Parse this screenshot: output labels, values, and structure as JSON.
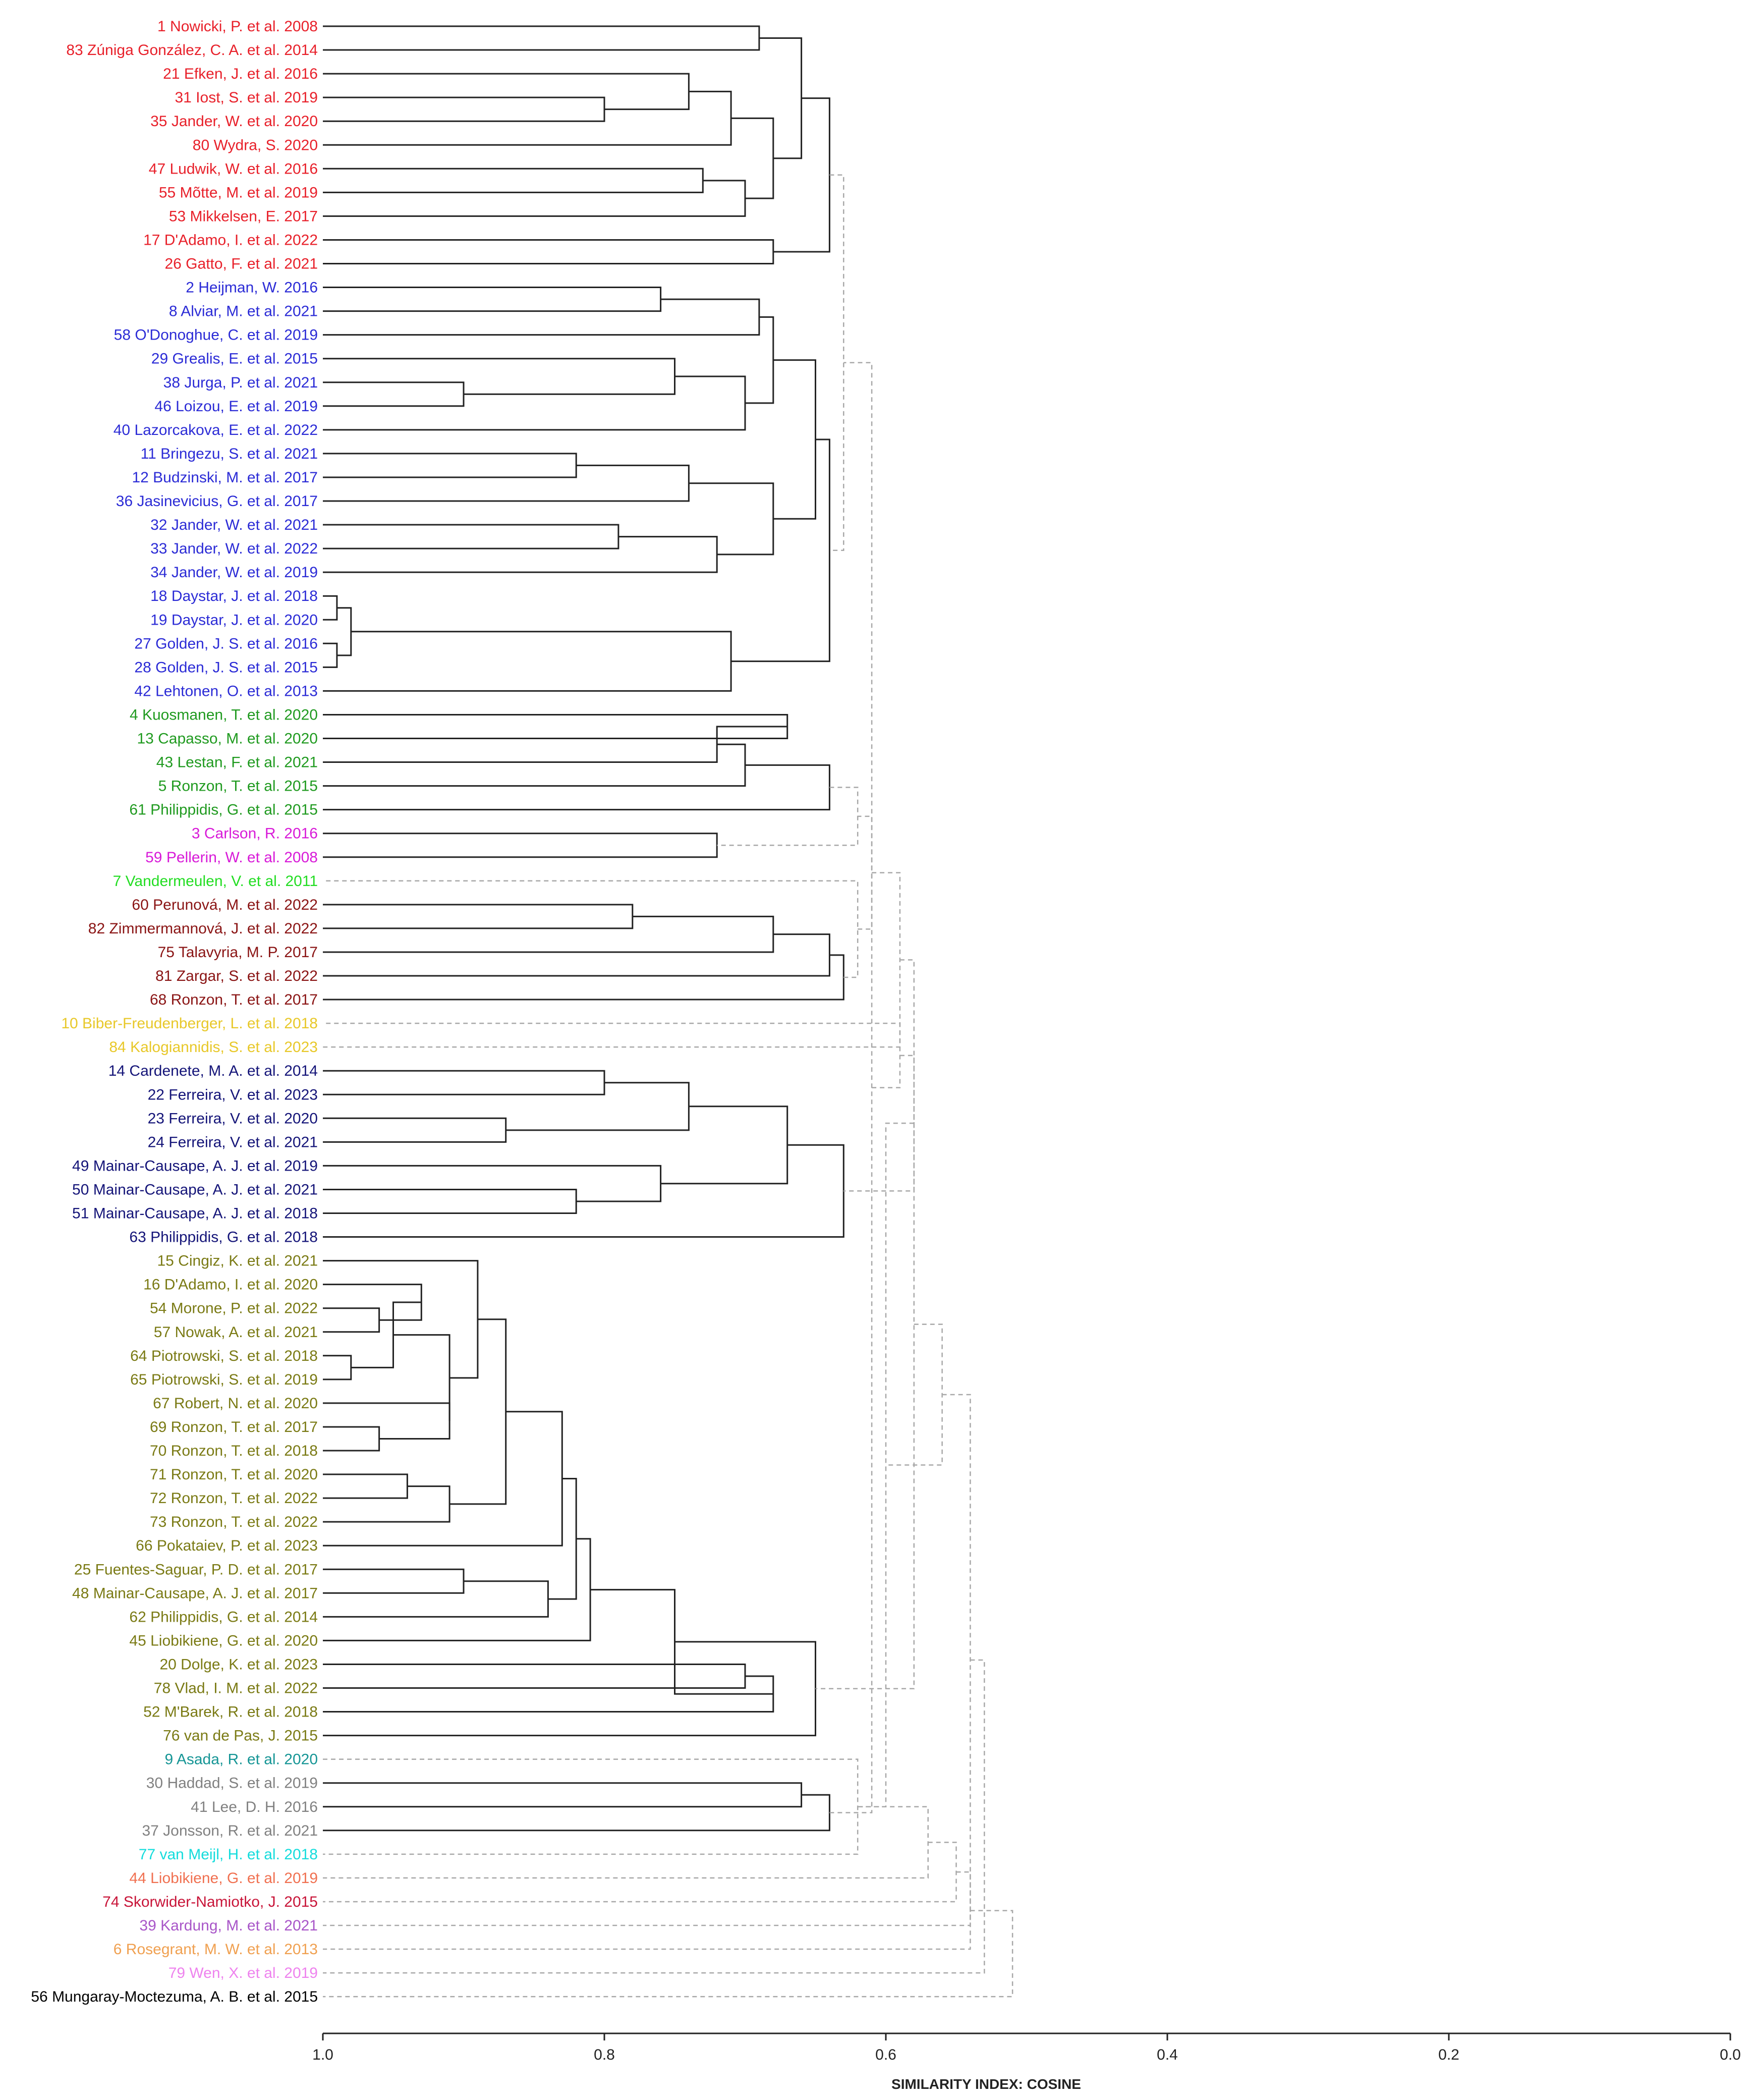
{
  "chart_data": {
    "type": "dendrogram",
    "xlabel": "SIMILARITY INDEX: COSINE",
    "x_axis": {
      "range": [
        1.0,
        0.0
      ],
      "ticks": [
        1.0,
        0.8,
        0.6,
        0.4,
        0.2,
        0.0
      ],
      "tick_labels": [
        "1.0",
        "0.8",
        "0.6",
        "0.4",
        "0.2",
        "0.0"
      ]
    },
    "colors": {
      "red": "#e8202a",
      "blue": "#2b2bd6",
      "green": "#1f9a1f",
      "magenta": "#d81ad8",
      "lime": "#22dd22",
      "maroon": "#8a1414",
      "yellow": "#e8c829",
      "navy": "#141478",
      "olive": "#7a7a14",
      "teal": "#159595",
      "gray": "#808080",
      "cyan": "#14dcdc",
      "salmon": "#f07050",
      "crimson": "#c81438",
      "purple": "#a855c8",
      "orange": "#f0a050",
      "pink": "#ee82ee",
      "black": "#000000"
    },
    "leaves": [
      {
        "id": "1",
        "name": "Nowicki, P. et al.",
        "year": "2008",
        "color": "red"
      },
      {
        "id": "83",
        "name": "Zúniga González, C. A. et al.",
        "year": "2014",
        "color": "red"
      },
      {
        "id": "21",
        "name": "Efken, J. et al.",
        "year": "2016",
        "color": "red"
      },
      {
        "id": "31",
        "name": "Iost, S. et al.",
        "year": "2019",
        "color": "red"
      },
      {
        "id": "35",
        "name": "Jander, W. et al.",
        "year": "2020",
        "color": "red"
      },
      {
        "id": "80",
        "name": "Wydra, S.",
        "year": "2020",
        "color": "red"
      },
      {
        "id": "47",
        "name": "Ludwik, W. et al.",
        "year": "2016",
        "color": "red"
      },
      {
        "id": "55",
        "name": "Mõtte, M. et al.",
        "year": "2019",
        "color": "red"
      },
      {
        "id": "53",
        "name": "Mikkelsen, E.",
        "year": "2017",
        "color": "red"
      },
      {
        "id": "17",
        "name": "D'Adamo, I. et al.",
        "year": "2022",
        "color": "red"
      },
      {
        "id": "26",
        "name": "Gatto, F. et al.",
        "year": "2021",
        "color": "red"
      },
      {
        "id": "2",
        "name": "Heijman, W.",
        "year": "2016",
        "color": "blue"
      },
      {
        "id": "8",
        "name": "Alviar, M. et al.",
        "year": "2021",
        "color": "blue"
      },
      {
        "id": "58",
        "name": "O'Donoghue, C. et al.",
        "year": "2019",
        "color": "blue"
      },
      {
        "id": "29",
        "name": "Grealis, E. et al.",
        "year": "2015",
        "color": "blue"
      },
      {
        "id": "38",
        "name": "Jurga, P. et al.",
        "year": "2021",
        "color": "blue"
      },
      {
        "id": "46",
        "name": "Loizou, E. et al.",
        "year": "2019",
        "color": "blue"
      },
      {
        "id": "40",
        "name": "Lazorcakova, E. et al.",
        "year": "2022",
        "color": "blue"
      },
      {
        "id": "11",
        "name": "Bringezu, S. et al.",
        "year": "2021",
        "color": "blue"
      },
      {
        "id": "12",
        "name": "Budzinski, M. et al.",
        "year": "2017",
        "color": "blue"
      },
      {
        "id": "36",
        "name": "Jasinevicius, G. et al.",
        "year": "2017",
        "color": "blue"
      },
      {
        "id": "32",
        "name": "Jander, W. et al.",
        "year": "2021",
        "color": "blue"
      },
      {
        "id": "33",
        "name": "Jander, W. et al.",
        "year": "2022",
        "color": "blue"
      },
      {
        "id": "34",
        "name": "Jander, W. et al.",
        "year": "2019",
        "color": "blue"
      },
      {
        "id": "18",
        "name": "Daystar, J. et al.",
        "year": "2018",
        "color": "blue"
      },
      {
        "id": "19",
        "name": "Daystar, J. et al.",
        "year": "2020",
        "color": "blue"
      },
      {
        "id": "27",
        "name": "Golden, J. S. et al.",
        "year": "2016",
        "color": "blue"
      },
      {
        "id": "28",
        "name": "Golden, J. S. et al.",
        "year": "2015",
        "color": "blue"
      },
      {
        "id": "42",
        "name": "Lehtonen, O. et al.",
        "year": "2013",
        "color": "blue"
      },
      {
        "id": "4",
        "name": "Kuosmanen, T. et al.",
        "year": "2020",
        "color": "green"
      },
      {
        "id": "13",
        "name": "Capasso, M. et al.",
        "year": "2020",
        "color": "green"
      },
      {
        "id": "43",
        "name": "Lestan, F. et al.",
        "year": "2021",
        "color": "green"
      },
      {
        "id": "5",
        "name": "Ronzon, T. et al.",
        "year": "2015",
        "color": "green"
      },
      {
        "id": "61",
        "name": "Philippidis, G. et al.",
        "year": "2015",
        "color": "green"
      },
      {
        "id": "3",
        "name": "Carlson, R.",
        "year": "2016",
        "color": "magenta"
      },
      {
        "id": "59",
        "name": "Pellerin, W. et al.",
        "year": "2008",
        "color": "magenta"
      },
      {
        "id": "7",
        "name": "Vandermeulen, V. et al.",
        "year": "2011",
        "color": "lime"
      },
      {
        "id": "60",
        "name": "Perunová, M. et al.",
        "year": "2022",
        "color": "maroon"
      },
      {
        "id": "82",
        "name": "Zimmermannová, J. et al.",
        "year": "2022",
        "color": "maroon"
      },
      {
        "id": "75",
        "name": "Talavyria, M. P.",
        "year": "2017",
        "color": "maroon"
      },
      {
        "id": "81",
        "name": "Zargar, S. et al.",
        "year": "2022",
        "color": "maroon"
      },
      {
        "id": "68",
        "name": "Ronzon, T. et al.",
        "year": "2017",
        "color": "maroon"
      },
      {
        "id": "10",
        "name": "Biber-Freudenberger, L. et al.",
        "year": "2018",
        "color": "yellow"
      },
      {
        "id": "84",
        "name": "Kalogiannidis, S. et al.",
        "year": "2023",
        "color": "yellow"
      },
      {
        "id": "14",
        "name": "Cardenete, M. A. et al.",
        "year": "2014",
        "color": "navy"
      },
      {
        "id": "22",
        "name": "Ferreira, V. et al.",
        "year": "2023",
        "color": "navy"
      },
      {
        "id": "23",
        "name": "Ferreira, V. et al.",
        "year": "2020",
        "color": "navy"
      },
      {
        "id": "24",
        "name": "Ferreira, V. et al.",
        "year": "2021",
        "color": "navy"
      },
      {
        "id": "49",
        "name": "Mainar-Causape, A. J. et al.",
        "year": "2019",
        "color": "navy"
      },
      {
        "id": "50",
        "name": "Mainar-Causape, A. J. et al.",
        "year": "2021",
        "color": "navy"
      },
      {
        "id": "51",
        "name": "Mainar-Causape, A. J. et al.",
        "year": "2018",
        "color": "navy"
      },
      {
        "id": "63",
        "name": "Philippidis, G. et al.",
        "year": "2018",
        "color": "navy"
      },
      {
        "id": "15",
        "name": "Cingiz, K. et al.",
        "year": "2021",
        "color": "olive"
      },
      {
        "id": "16",
        "name": "D'Adamo, I. et al.",
        "year": "2020",
        "color": "olive"
      },
      {
        "id": "54",
        "name": "Morone, P. et al.",
        "year": "2022",
        "color": "olive"
      },
      {
        "id": "57",
        "name": "Nowak, A. et al.",
        "year": "2021",
        "color": "olive"
      },
      {
        "id": "64",
        "name": "Piotrowski, S. et al.",
        "year": "2018",
        "color": "olive"
      },
      {
        "id": "65",
        "name": "Piotrowski, S. et al.",
        "year": "2019",
        "color": "olive"
      },
      {
        "id": "67",
        "name": "Robert, N. et al.",
        "year": "2020",
        "color": "olive"
      },
      {
        "id": "69",
        "name": "Ronzon, T. et al.",
        "year": "2017",
        "color": "olive"
      },
      {
        "id": "70",
        "name": "Ronzon, T. et al.",
        "year": "2018",
        "color": "olive"
      },
      {
        "id": "71",
        "name": "Ronzon, T. et al.",
        "year": "2020",
        "color": "olive"
      },
      {
        "id": "72",
        "name": "Ronzon, T. et al.",
        "year": "2022",
        "color": "olive"
      },
      {
        "id": "73",
        "name": "Ronzon, T. et al.",
        "year": "2022",
        "color": "olive"
      },
      {
        "id": "66",
        "name": "Pokataiev, P. et al.",
        "year": "2023",
        "color": "olive"
      },
      {
        "id": "25",
        "name": "Fuentes-Saguar, P. D. et al.",
        "year": "2017",
        "color": "olive"
      },
      {
        "id": "48",
        "name": "Mainar-Causape, A. J. et al.",
        "year": "2017",
        "color": "olive"
      },
      {
        "id": "62",
        "name": "Philippidis, G. et al.",
        "year": "2014",
        "color": "olive"
      },
      {
        "id": "45",
        "name": "Liobikiene, G. et al.",
        "year": "2020",
        "color": "olive"
      },
      {
        "id": "20",
        "name": "Dolge, K. et al.",
        "year": "2023",
        "color": "olive"
      },
      {
        "id": "78",
        "name": "Vlad, I. M. et al.",
        "year": "2022",
        "color": "olive"
      },
      {
        "id": "52",
        "name": "M'Barek, R. et al.",
        "year": "2018",
        "color": "olive"
      },
      {
        "id": "76",
        "name": "van de Pas, J.",
        "year": "2015",
        "color": "olive"
      },
      {
        "id": "9",
        "name": "Asada, R. et al.",
        "year": "2020",
        "color": "teal"
      },
      {
        "id": "30",
        "name": "Haddad, S. et al.",
        "year": "2019",
        "color": "gray"
      },
      {
        "id": "41",
        "name": "Lee, D. H.",
        "year": "2016",
        "color": "gray"
      },
      {
        "id": "37",
        "name": "Jonsson, R. et al.",
        "year": "2021",
        "color": "gray"
      },
      {
        "id": "77",
        "name": "van Meijl, H. et al.",
        "year": "2018",
        "color": "cyan"
      },
      {
        "id": "44",
        "name": "Liobikiene, G. et al.",
        "year": "2019",
        "color": "salmon"
      },
      {
        "id": "74",
        "name": "Skorwider-Namiotko, J.",
        "year": "2015",
        "color": "crimson"
      },
      {
        "id": "39",
        "name": "Kardung, M. et al.",
        "year": "2021",
        "color": "purple"
      },
      {
        "id": "6",
        "name": "Rosegrant, M. W. et al.",
        "year": "2013",
        "color": "orange"
      },
      {
        "id": "79",
        "name": "Wen, X. et al.",
        "year": "2019",
        "color": "pink"
      },
      {
        "id": "56",
        "name": "Mungaray-Moctezuma, A. B. et al.",
        "year": "2015",
        "color": "black"
      }
    ],
    "merges": [
      {
        "a": "L0",
        "b": "L1",
        "h": 0.69
      },
      {
        "a": "L3",
        "b": "L4",
        "h": 0.8
      },
      {
        "a": "L2",
        "b": "M1",
        "h": 0.74
      },
      {
        "a": "M2",
        "b": "L5",
        "h": 0.71
      },
      {
        "a": "L6",
        "b": "L7",
        "h": 0.73
      },
      {
        "a": "M4",
        "b": "L8",
        "h": 0.7
      },
      {
        "a": "M3",
        "b": "M5",
        "h": 0.68
      },
      {
        "a": "M0",
        "b": "M6",
        "h": 0.66
      },
      {
        "a": "L9",
        "b": "L10",
        "h": 0.68
      },
      {
        "a": "M7",
        "b": "M8",
        "h": 0.64
      },
      {
        "a": "L11",
        "b": "L12",
        "h": 0.76
      },
      {
        "a": "M10",
        "b": "L13",
        "h": 0.69
      },
      {
        "a": "L15",
        "b": "L16",
        "h": 0.9
      },
      {
        "a": "L14",
        "b": "M12",
        "h": 0.75
      },
      {
        "a": "M13",
        "b": "L17",
        "h": 0.7
      },
      {
        "a": "M11",
        "b": "M14",
        "h": 0.68
      },
      {
        "a": "L18",
        "b": "L19",
        "h": 0.82
      },
      {
        "a": "M16",
        "b": "L20",
        "h": 0.74
      },
      {
        "a": "L21",
        "b": "L22",
        "h": 0.79
      },
      {
        "a": "M18",
        "b": "L23",
        "h": 0.72
      },
      {
        "a": "M17",
        "b": "M19",
        "h": 0.68
      },
      {
        "a": "M15",
        "b": "M20",
        "h": 0.65
      },
      {
        "a": "L24",
        "b": "L25",
        "h": 0.99
      },
      {
        "a": "L26",
        "b": "L27",
        "h": 0.99
      },
      {
        "a": "M22",
        "b": "M23",
        "h": 0.98
      },
      {
        "a": "M24",
        "b": "L28",
        "h": 0.71
      },
      {
        "a": "M21",
        "b": "M25",
        "h": 0.64
      },
      {
        "a": "L29",
        "b": "L30",
        "h": 0.67
      },
      {
        "a": "M27",
        "b": "L31",
        "h": 0.72
      },
      {
        "a": "M28",
        "b": "L32",
        "h": 0.7
      },
      {
        "a": "M29",
        "b": "L33",
        "h": 0.64
      },
      {
        "a": "L34",
        "b": "L35",
        "h": 0.72
      },
      {
        "a": "L37",
        "b": "L38",
        "h": 0.78
      },
      {
        "a": "M32",
        "b": "L39",
        "h": 0.68
      },
      {
        "a": "M33",
        "b": "L40",
        "h": 0.64
      },
      {
        "a": "M34",
        "b": "L41",
        "h": 0.63
      },
      {
        "a": "L44",
        "b": "L45",
        "h": 0.8
      },
      {
        "a": "L46",
        "b": "L47",
        "h": 0.87
      },
      {
        "a": "M36",
        "b": "M37",
        "h": 0.74
      },
      {
        "a": "L49",
        "b": "L50",
        "h": 0.82
      },
      {
        "a": "L48",
        "b": "M39",
        "h": 0.76
      },
      {
        "a": "M38",
        "b": "M40",
        "h": 0.67
      },
      {
        "a": "M41",
        "b": "L51",
        "h": 0.63
      },
      {
        "a": "L54",
        "b": "L55",
        "h": 0.96
      },
      {
        "a": "L53",
        "b": "M43",
        "h": 0.93
      },
      {
        "a": "L56",
        "b": "L57",
        "h": 0.98
      },
      {
        "a": "M44",
        "b": "M45",
        "h": 0.95
      },
      {
        "a": "L59",
        "b": "L60",
        "h": 0.96
      },
      {
        "a": "L58",
        "b": "M47",
        "h": 0.91
      },
      {
        "a": "M46",
        "b": "M48",
        "h": 0.91
      },
      {
        "a": "L61",
        "b": "L62",
        "h": 0.94
      },
      {
        "a": "M50",
        "b": "L63",
        "h": 0.91
      },
      {
        "a": "L52",
        "b": "M49",
        "h": 0.89
      },
      {
        "a": "M52",
        "b": "M51",
        "h": 0.87
      },
      {
        "a": "M53",
        "b": "L64",
        "h": 0.83
      },
      {
        "a": "L65",
        "b": "L66",
        "h": 0.9
      },
      {
        "a": "M55",
        "b": "L67",
        "h": 0.84
      },
      {
        "a": "M54",
        "b": "M56",
        "h": 0.82
      },
      {
        "a": "M57",
        "b": "L68",
        "h": 0.81
      },
      {
        "a": "L69",
        "b": "L70",
        "h": 0.7
      },
      {
        "a": "M59",
        "b": "L71",
        "h": 0.68
      },
      {
        "a": "M58",
        "b": "M60",
        "h": 0.75
      },
      {
        "a": "M61",
        "b": "L72",
        "h": 0.65
      },
      {
        "a": "L74",
        "b": "L75",
        "h": 0.66
      },
      {
        "a": "M63",
        "b": "L76",
        "h": 0.64
      }
    ],
    "dashed_links": [
      {
        "a": "M9",
        "b": "M26",
        "h": 0.63
      },
      {
        "a": "M30",
        "b": "M31",
        "h": 0.62
      },
      {
        "a": "M35",
        "b": "L36",
        "h": 0.62
      },
      {
        "a": "M64",
        "b": "M65",
        "h": 0.61
      },
      {
        "a": "M67",
        "b": "M66",
        "h": 0.61
      },
      {
        "a": "M68",
        "b": "L42",
        "h": 0.59
      },
      {
        "a": "M69",
        "b": "L43",
        "h": 0.59
      },
      {
        "a": "M70",
        "b": "M42",
        "h": 0.58
      },
      {
        "a": "L73",
        "b": "L77",
        "h": 0.62
      },
      {
        "a": "M72",
        "b": "M66b",
        "h": 0.6
      },
      {
        "a": "M71",
        "b": "M62",
        "h": 0.58
      },
      {
        "a": "M73",
        "b": "L78",
        "h": 0.57
      },
      {
        "a": "M75",
        "b": "M74",
        "h": 0.56
      },
      {
        "a": "M76",
        "b": "L79",
        "h": 0.55
      },
      {
        "a": "M77",
        "b": "L80",
        "h": 0.54
      },
      {
        "a": "M78",
        "b": "L81",
        "h": 0.54
      },
      {
        "a": "M79",
        "b": "L82",
        "h": 0.53
      },
      {
        "a": "M80",
        "b": "L83",
        "h": 0.51
      }
    ]
  }
}
